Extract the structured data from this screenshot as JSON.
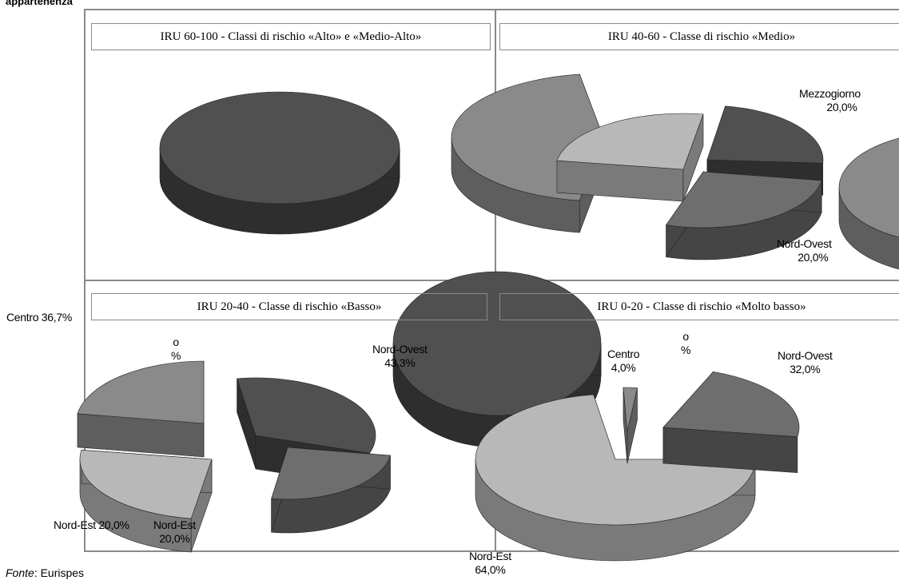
{
  "title": "appartenenza",
  "source": {
    "prefix": "Fonte",
    "text": ": Eurispes"
  },
  "panel_titles": [
    "IRU 60-100 - Classi di rischio «Alto» e «Medio-Alto»",
    "IRU 40-60 - Classe di rischio «Medio»",
    "IRU 20-40 - Classe di rischio «Basso»",
    "IRU 0-20 - Classe di rischio «Molto basso»"
  ],
  "labels": {
    "p2_mezzogiorno": {
      "name": "Mezzogiorno",
      "value": "20,0%"
    },
    "p2_nordovest": {
      "name": "Nord-Ovest",
      "value": "20,0%"
    },
    "p3_centro": {
      "name": "Centro 36,7%"
    },
    "p3_partial": {
      "name": "o",
      "value": "%"
    },
    "p3_nordovest": {
      "name": "Nord-Ovest",
      "value": "43,3%"
    },
    "p3_nordest_left": {
      "name": "Nord-Est 20,0%"
    },
    "p3_nordest": {
      "name": "Nord-Est",
      "value": "20,0%"
    },
    "p4_centro": {
      "name": "Centro",
      "value": "4,0%"
    },
    "p4_partial": {
      "name": "o",
      "value": "%"
    },
    "p4_nordovest": {
      "name": "Nord-Ovest",
      "value": "32,0%"
    },
    "p4_nordest": {
      "name": "Nord-Est",
      "value": "64,0%"
    }
  },
  "colors": {
    "dark": "#505050",
    "dark_side": "#2e2e2e",
    "mid": "#6e6e6e",
    "mid_side": "#454545",
    "light": "#8a8a8a",
    "light_side": "#5e5e5e",
    "pale": "#b8b8b8",
    "pale_side": "#7a7a7a",
    "frame": "#8a8a8a"
  },
  "chart_data": [
    {
      "type": "pie",
      "title": "IRU 60-100 - Classi di rischio «Alto» e «Medio-Alto»",
      "categories": [],
      "values": []
    },
    {
      "type": "pie",
      "title": "IRU 40-60 - Classe di rischio «Medio»",
      "categories": [
        "Mezzogiorno",
        "Nord-Ovest"
      ],
      "values": [
        20.0,
        20.0
      ]
    },
    {
      "type": "pie",
      "title": "IRU 20-40 - Classe di rischio «Basso»",
      "categories": [
        "Nord-Ovest",
        "Centro",
        "Nord-Est"
      ],
      "values": [
        43.3,
        36.7,
        20.0
      ]
    },
    {
      "type": "pie",
      "title": "IRU 0-20 - Classe di rischio «Molto basso»",
      "categories": [
        "Nord-Est",
        "Nord-Ovest",
        "Centro"
      ],
      "values": [
        64.0,
        32.0,
        4.0
      ]
    }
  ]
}
